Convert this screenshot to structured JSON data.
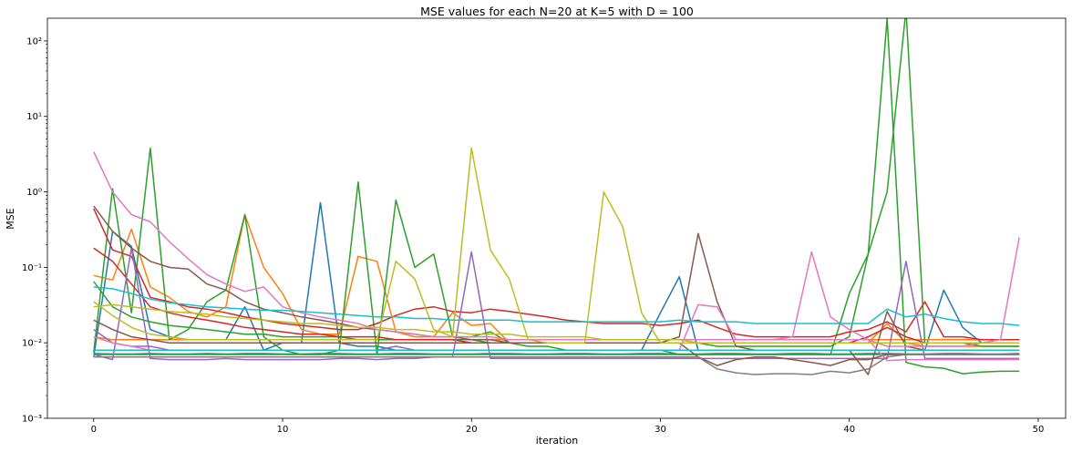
{
  "chart_data": {
    "type": "line",
    "title": "MSE values for each N=20 at K=5 with D = 100",
    "xlabel": "iteration",
    "ylabel": "MSE",
    "xlim": [
      -2.45,
      51.45
    ],
    "ylim": [
      0.001,
      200
    ],
    "yscale": "log",
    "grid": false,
    "x_ticks": [
      0,
      10,
      20,
      30,
      40,
      50
    ],
    "x_tick_labels": [
      "0",
      "10",
      "20",
      "30",
      "40",
      "50"
    ],
    "y_ticks": [
      0.001,
      0.01,
      0.1,
      1,
      10,
      100
    ],
    "y_tick_labels": [
      "10⁻³",
      "10⁻²",
      "10⁻¹",
      "10⁰",
      "10¹",
      "10²"
    ],
    "series": [
      {
        "color": "#1f77b4",
        "values": [
          0.0072,
          0.0071,
          0.0071,
          0.0072,
          0.0071,
          0.0071,
          0.0072,
          0.0071,
          0.0072,
          0.0072,
          0.0071,
          0.0071,
          0.0072,
          0.0072,
          0.0071,
          0.0071,
          0.0072,
          0.0072,
          0.0071,
          0.0071,
          0.0071,
          0.0072,
          0.0072,
          0.0071,
          0.0071,
          0.0072,
          0.0072,
          0.0071,
          0.0071,
          0.0072,
          0.0072,
          0.0071,
          0.0071,
          0.0072,
          0.0072,
          0.0071,
          0.0071,
          0.0072,
          0.0072,
          0.0071,
          0.0071,
          0.0072,
          0.0072,
          0.0071,
          0.0071,
          0.0072,
          0.0072,
          0.0071,
          0.0071,
          0.0072
        ]
      },
      {
        "color": "#1f77b4",
        "values": [
          0.0065,
          0.3,
          0.19,
          0.015,
          0.012,
          0.011,
          0.011,
          0.011,
          0.03,
          0.008,
          0.01,
          0.01,
          0.72,
          0.01,
          0.009,
          0.009,
          0.008,
          0.008,
          0.008,
          0.008,
          0.008,
          0.008,
          0.008,
          0.008,
          0.008,
          0.008,
          0.008,
          0.008,
          0.008,
          0.008,
          0.025,
          0.075,
          0.008,
          0.008,
          0.008,
          0.008,
          0.008,
          0.008,
          0.008,
          0.008,
          0.008,
          0.008,
          0.008,
          0.008,
          0.008,
          0.05,
          0.016,
          0.01,
          0.01,
          0.01
        ]
      },
      {
        "color": "#ff7f0e",
        "values": [
          0.078,
          0.068,
          0.32,
          0.055,
          0.04,
          0.026,
          0.022,
          0.03,
          0.5,
          0.1,
          0.045,
          0.015,
          0.013,
          0.013,
          0.14,
          0.12,
          0.014,
          0.012,
          0.012,
          0.025,
          0.017,
          0.018,
          0.01,
          0.01,
          0.01,
          0.01,
          0.01,
          0.01,
          0.01,
          0.01,
          0.01,
          0.01,
          0.01,
          0.01,
          0.01,
          0.01,
          0.01,
          0.01,
          0.01,
          0.01,
          0.01,
          0.01,
          0.018,
          0.01,
          0.009,
          0.009,
          0.009,
          0.009,
          0.009,
          0.009
        ]
      },
      {
        "color": "#ff7f0e",
        "values": [
          0.012,
          0.011,
          0.011,
          0.011,
          0.011,
          0.011,
          0.011,
          0.011,
          0.011,
          0.011,
          0.011,
          0.011,
          0.011,
          0.011,
          0.011,
          0.011,
          0.011,
          0.011,
          0.011,
          0.011,
          0.011,
          0.011,
          0.011,
          0.011,
          0.011,
          0.011,
          0.011,
          0.011,
          0.011,
          0.011,
          0.011,
          0.011,
          0.011,
          0.011,
          0.011,
          0.011,
          0.011,
          0.011,
          0.011,
          0.011,
          0.011,
          0.011,
          0.011,
          0.011,
          0.011,
          0.011,
          0.011,
          0.011,
          0.011,
          0.011
        ]
      },
      {
        "color": "#2ca02c",
        "values": [
          0.0075,
          1.1,
          0.025,
          3.8,
          0.011,
          0.015,
          0.035,
          0.05,
          0.5,
          0.012,
          0.008,
          0.007,
          0.007,
          0.008,
          1.35,
          0.007,
          0.78,
          0.1,
          0.15,
          0.012,
          0.012,
          0.014,
          0.01,
          0.009,
          0.009,
          0.008,
          0.008,
          0.008,
          0.008,
          0.008,
          0.008,
          0.007,
          0.007,
          0.007,
          0.007,
          0.007,
          0.007,
          0.007,
          0.007,
          0.007,
          0.007,
          0.007,
          0.007,
          0.007,
          0.007,
          0.007,
          0.007,
          0.007,
          0.007,
          0.007
        ]
      },
      {
        "color": "#2ca02c",
        "values": [
          0.065,
          0.03,
          0.022,
          0.019,
          0.017,
          0.016,
          0.015,
          0.014,
          0.013,
          0.013,
          0.012,
          0.012,
          0.012,
          0.012,
          0.011,
          0.011,
          0.011,
          0.011,
          0.011,
          0.011,
          0.011,
          0.01,
          0.01,
          0.01,
          0.01,
          0.01,
          0.01,
          0.01,
          0.01,
          0.01,
          0.01,
          0.01,
          0.01,
          0.009,
          0.009,
          0.009,
          0.009,
          0.009,
          0.009,
          0.009,
          0.012,
          0.15,
          200,
          0.0055,
          0.0048,
          0.0046,
          0.0039,
          0.0041,
          0.0042,
          0.0042
        ]
      },
      {
        "color": "#2ca02c",
        "values": [
          0.007,
          0.007,
          0.007,
          0.007,
          0.007,
          0.007,
          0.007,
          0.007,
          0.007,
          0.007,
          0.007,
          0.007,
          0.007,
          0.007,
          0.007,
          0.007,
          0.007,
          0.007,
          0.007,
          0.007,
          0.007,
          0.007,
          0.007,
          0.007,
          0.007,
          0.007,
          0.007,
          0.007,
          0.007,
          0.007,
          0.007,
          0.007,
          0.007,
          0.007,
          0.007,
          0.007,
          0.007,
          0.007,
          0.007,
          0.007,
          0.045,
          0.15,
          1.0,
          260,
          0.01,
          0.01,
          0.01,
          0.009,
          0.009,
          0.009
        ]
      },
      {
        "color": "#d62728",
        "values": [
          0.6,
          0.17,
          0.14,
          0.04,
          0.035,
          0.03,
          0.028,
          0.025,
          0.022,
          0.02,
          0.018,
          0.017,
          0.016,
          0.015,
          0.015,
          0.018,
          0.023,
          0.028,
          0.03,
          0.026,
          0.025,
          0.028,
          0.026,
          0.024,
          0.022,
          0.02,
          0.019,
          0.018,
          0.018,
          0.018,
          0.017,
          0.018,
          0.02,
          0.016,
          0.013,
          0.012,
          0.012,
          0.012,
          0.012,
          0.012,
          0.014,
          0.015,
          0.019,
          0.014,
          0.035,
          0.012,
          0.012,
          0.011,
          0.011,
          0.011
        ]
      },
      {
        "color": "#d62728",
        "values": [
          0.18,
          0.12,
          0.06,
          0.03,
          0.025,
          0.022,
          0.02,
          0.018,
          0.016,
          0.015,
          0.014,
          0.013,
          0.013,
          0.012,
          0.012,
          0.012,
          0.011,
          0.011,
          0.011,
          0.011,
          0.01,
          0.01,
          0.01,
          0.01,
          0.01,
          0.01,
          0.01,
          0.01,
          0.01,
          0.01,
          0.01,
          0.01,
          0.01,
          0.01,
          0.01,
          0.01,
          0.01,
          0.01,
          0.01,
          0.01,
          0.01,
          0.012,
          0.016,
          0.012,
          0.01,
          0.01,
          0.01,
          0.01,
          0.01,
          0.01
        ]
      },
      {
        "color": "#9467bd",
        "values": [
          0.007,
          0.006,
          0.18,
          0.0062,
          0.006,
          0.006,
          0.006,
          0.0062,
          0.006,
          0.006,
          0.006,
          0.006,
          0.006,
          0.0062,
          0.0062,
          0.006,
          0.0062,
          0.0062,
          0.0065,
          0.0065,
          0.16,
          0.0062,
          0.0062,
          0.0062,
          0.0062,
          0.0062,
          0.0062,
          0.0062,
          0.0062,
          0.0062,
          0.0062,
          0.0062,
          0.0062,
          0.0062,
          0.0062,
          0.0062,
          0.0062,
          0.0062,
          0.0062,
          0.0062,
          0.0062,
          0.0062,
          0.0062,
          0.12,
          0.0062,
          0.0062,
          0.0062,
          0.0062,
          0.0062,
          0.0062
        ]
      },
      {
        "color": "#9467bd",
        "values": [
          0.015,
          0.01,
          0.009,
          0.009,
          0.008,
          0.008,
          0.008,
          0.008,
          0.008,
          0.008,
          0.008,
          0.008,
          0.008,
          0.008,
          0.008,
          0.008,
          0.009,
          0.008,
          0.008,
          0.008,
          0.008,
          0.008,
          0.008,
          0.008,
          0.008,
          0.008,
          0.008,
          0.008,
          0.008,
          0.008,
          0.008,
          0.008,
          0.008,
          0.008,
          0.008,
          0.008,
          0.008,
          0.008,
          0.008,
          0.008,
          0.008,
          0.008,
          0.008,
          0.008,
          0.008,
          0.008,
          0.008,
          0.008,
          0.008,
          0.008
        ]
      },
      {
        "color": "#8c564b",
        "values": [
          0.65,
          0.3,
          0.18,
          0.12,
          0.1,
          0.095,
          0.06,
          0.05,
          0.035,
          0.028,
          0.025,
          0.022,
          0.02,
          0.018,
          0.016,
          0.015,
          0.014,
          0.013,
          0.012,
          0.012,
          0.011,
          0.011,
          0.01,
          0.01,
          0.01,
          0.01,
          0.01,
          0.01,
          0.01,
          0.01,
          0.01,
          0.012,
          0.28,
          0.035,
          0.009,
          0.008,
          0.008,
          0.008,
          0.008,
          0.008,
          0.008,
          0.0038,
          0.026,
          0.009,
          0.008,
          0.008,
          0.008,
          0.008,
          0.008,
          0.008
        ]
      },
      {
        "color": "#8c564b",
        "values": [
          0.02,
          0.015,
          0.012,
          0.011,
          0.01,
          0.01,
          0.01,
          0.01,
          0.01,
          0.01,
          0.01,
          0.01,
          0.01,
          0.01,
          0.01,
          0.01,
          0.01,
          0.01,
          0.01,
          0.01,
          0.01,
          0.01,
          0.01,
          0.01,
          0.01,
          0.01,
          0.01,
          0.01,
          0.01,
          0.01,
          0.01,
          0.01,
          0.0065,
          0.005,
          0.006,
          0.0065,
          0.0065,
          0.006,
          0.0055,
          0.005,
          0.006,
          0.006,
          0.007,
          0.007,
          0.007,
          0.007,
          0.007,
          0.007,
          0.007,
          0.007
        ]
      },
      {
        "color": "#e377c2",
        "values": [
          3.4,
          1.0,
          0.5,
          0.4,
          0.22,
          0.13,
          0.08,
          0.06,
          0.048,
          0.055,
          0.03,
          0.025,
          0.022,
          0.02,
          0.018,
          0.015,
          0.014,
          0.013,
          0.012,
          0.012,
          0.012,
          0.012,
          0.011,
          0.011,
          0.011,
          0.011,
          0.011,
          0.011,
          0.011,
          0.011,
          0.011,
          0.011,
          0.011,
          0.011,
          0.011,
          0.011,
          0.011,
          0.012,
          0.16,
          0.022,
          0.015,
          0.011,
          0.009,
          0.009,
          0.009,
          0.009,
          0.009,
          0.01,
          0.011,
          0.25
        ]
      },
      {
        "color": "#e377c2",
        "values": [
          0.012,
          0.01,
          0.009,
          0.008,
          0.008,
          0.008,
          0.008,
          0.008,
          0.008,
          0.008,
          0.008,
          0.008,
          0.008,
          0.008,
          0.008,
          0.008,
          0.008,
          0.008,
          0.008,
          0.008,
          0.008,
          0.008,
          0.008,
          0.008,
          0.008,
          0.008,
          0.008,
          0.008,
          0.008,
          0.008,
          0.008,
          0.008,
          0.032,
          0.03,
          0.011,
          0.011,
          0.011,
          0.011,
          0.011,
          0.011,
          0.011,
          0.011,
          0.0058,
          0.006,
          0.006,
          0.006,
          0.006,
          0.006,
          0.006,
          0.006
        ]
      },
      {
        "color": "#7f7f7f",
        "values": [
          0.0065,
          0.0065,
          0.0065,
          0.0065,
          0.0065,
          0.0065,
          0.0065,
          0.0065,
          0.0065,
          0.0065,
          0.0065,
          0.0065,
          0.0065,
          0.0065,
          0.0065,
          0.0065,
          0.0065,
          0.0065,
          0.0065,
          0.0065,
          0.0065,
          0.0065,
          0.0065,
          0.0065,
          0.0065,
          0.0065,
          0.0065,
          0.0065,
          0.0065,
          0.0065,
          0.0065,
          0.0065,
          0.0065,
          0.0045,
          0.004,
          0.0038,
          0.0039,
          0.0039,
          0.0038,
          0.0042,
          0.004,
          0.0045,
          0.0065,
          0.007,
          0.007,
          0.007,
          0.007,
          0.007,
          0.007,
          0.007
        ]
      },
      {
        "color": "#bcbd22",
        "values": [
          0.035,
          0.023,
          0.016,
          0.013,
          0.012,
          0.011,
          0.011,
          0.011,
          0.011,
          0.011,
          0.011,
          0.011,
          0.011,
          0.011,
          0.011,
          0.011,
          0.12,
          0.07,
          0.015,
          0.012,
          3.8,
          0.17,
          0.07,
          0.011,
          0.01,
          0.01,
          0.01,
          1.0,
          0.35,
          0.025,
          0.01,
          0.01,
          0.01,
          0.01,
          0.01,
          0.01,
          0.01,
          0.01,
          0.01,
          0.01,
          0.01,
          0.01,
          0.01,
          0.01,
          0.01,
          0.01,
          0.01,
          0.01,
          0.01,
          0.01
        ]
      },
      {
        "color": "#bcbd22",
        "values": [
          0.03,
          0.032,
          0.03,
          0.028,
          0.026,
          0.025,
          0.024,
          0.022,
          0.021,
          0.02,
          0.019,
          0.018,
          0.018,
          0.017,
          0.016,
          0.016,
          0.015,
          0.015,
          0.014,
          0.014,
          0.013,
          0.013,
          0.013,
          0.012,
          0.012,
          0.012,
          0.012,
          0.011,
          0.011,
          0.011,
          0.011,
          0.011,
          0.01,
          0.01,
          0.01,
          0.01,
          0.01,
          0.01,
          0.01,
          0.01,
          0.01,
          0.01,
          0.01,
          0.01,
          0.01,
          0.01,
          0.01,
          0.01,
          0.01,
          0.01
        ]
      },
      {
        "color": "#17becf",
        "values": [
          0.055,
          0.052,
          0.045,
          0.038,
          0.034,
          0.032,
          0.03,
          0.029,
          0.028,
          0.027,
          0.027,
          0.026,
          0.025,
          0.024,
          0.023,
          0.022,
          0.022,
          0.021,
          0.021,
          0.02,
          0.02,
          0.02,
          0.02,
          0.019,
          0.019,
          0.019,
          0.019,
          0.019,
          0.019,
          0.019,
          0.019,
          0.02,
          0.019,
          0.019,
          0.019,
          0.018,
          0.018,
          0.018,
          0.018,
          0.018,
          0.018,
          0.018,
          0.028,
          0.022,
          0.024,
          0.021,
          0.019,
          0.018,
          0.018,
          0.017
        ]
      },
      {
        "color": "#17becf",
        "values": [
          0.008,
          0.008,
          0.008,
          0.008,
          0.008,
          0.008,
          0.008,
          0.008,
          0.008,
          0.008,
          0.008,
          0.008,
          0.008,
          0.008,
          0.008,
          0.008,
          0.008,
          0.008,
          0.008,
          0.008,
          0.008,
          0.008,
          0.008,
          0.008,
          0.008,
          0.008,
          0.008,
          0.008,
          0.008,
          0.008,
          0.008,
          0.008,
          0.008,
          0.008,
          0.008,
          0.008,
          0.008,
          0.008,
          0.008,
          0.008,
          0.008,
          0.008,
          0.008,
          0.008,
          0.008,
          0.008,
          0.008,
          0.008,
          0.008,
          0.008
        ]
      }
    ]
  }
}
